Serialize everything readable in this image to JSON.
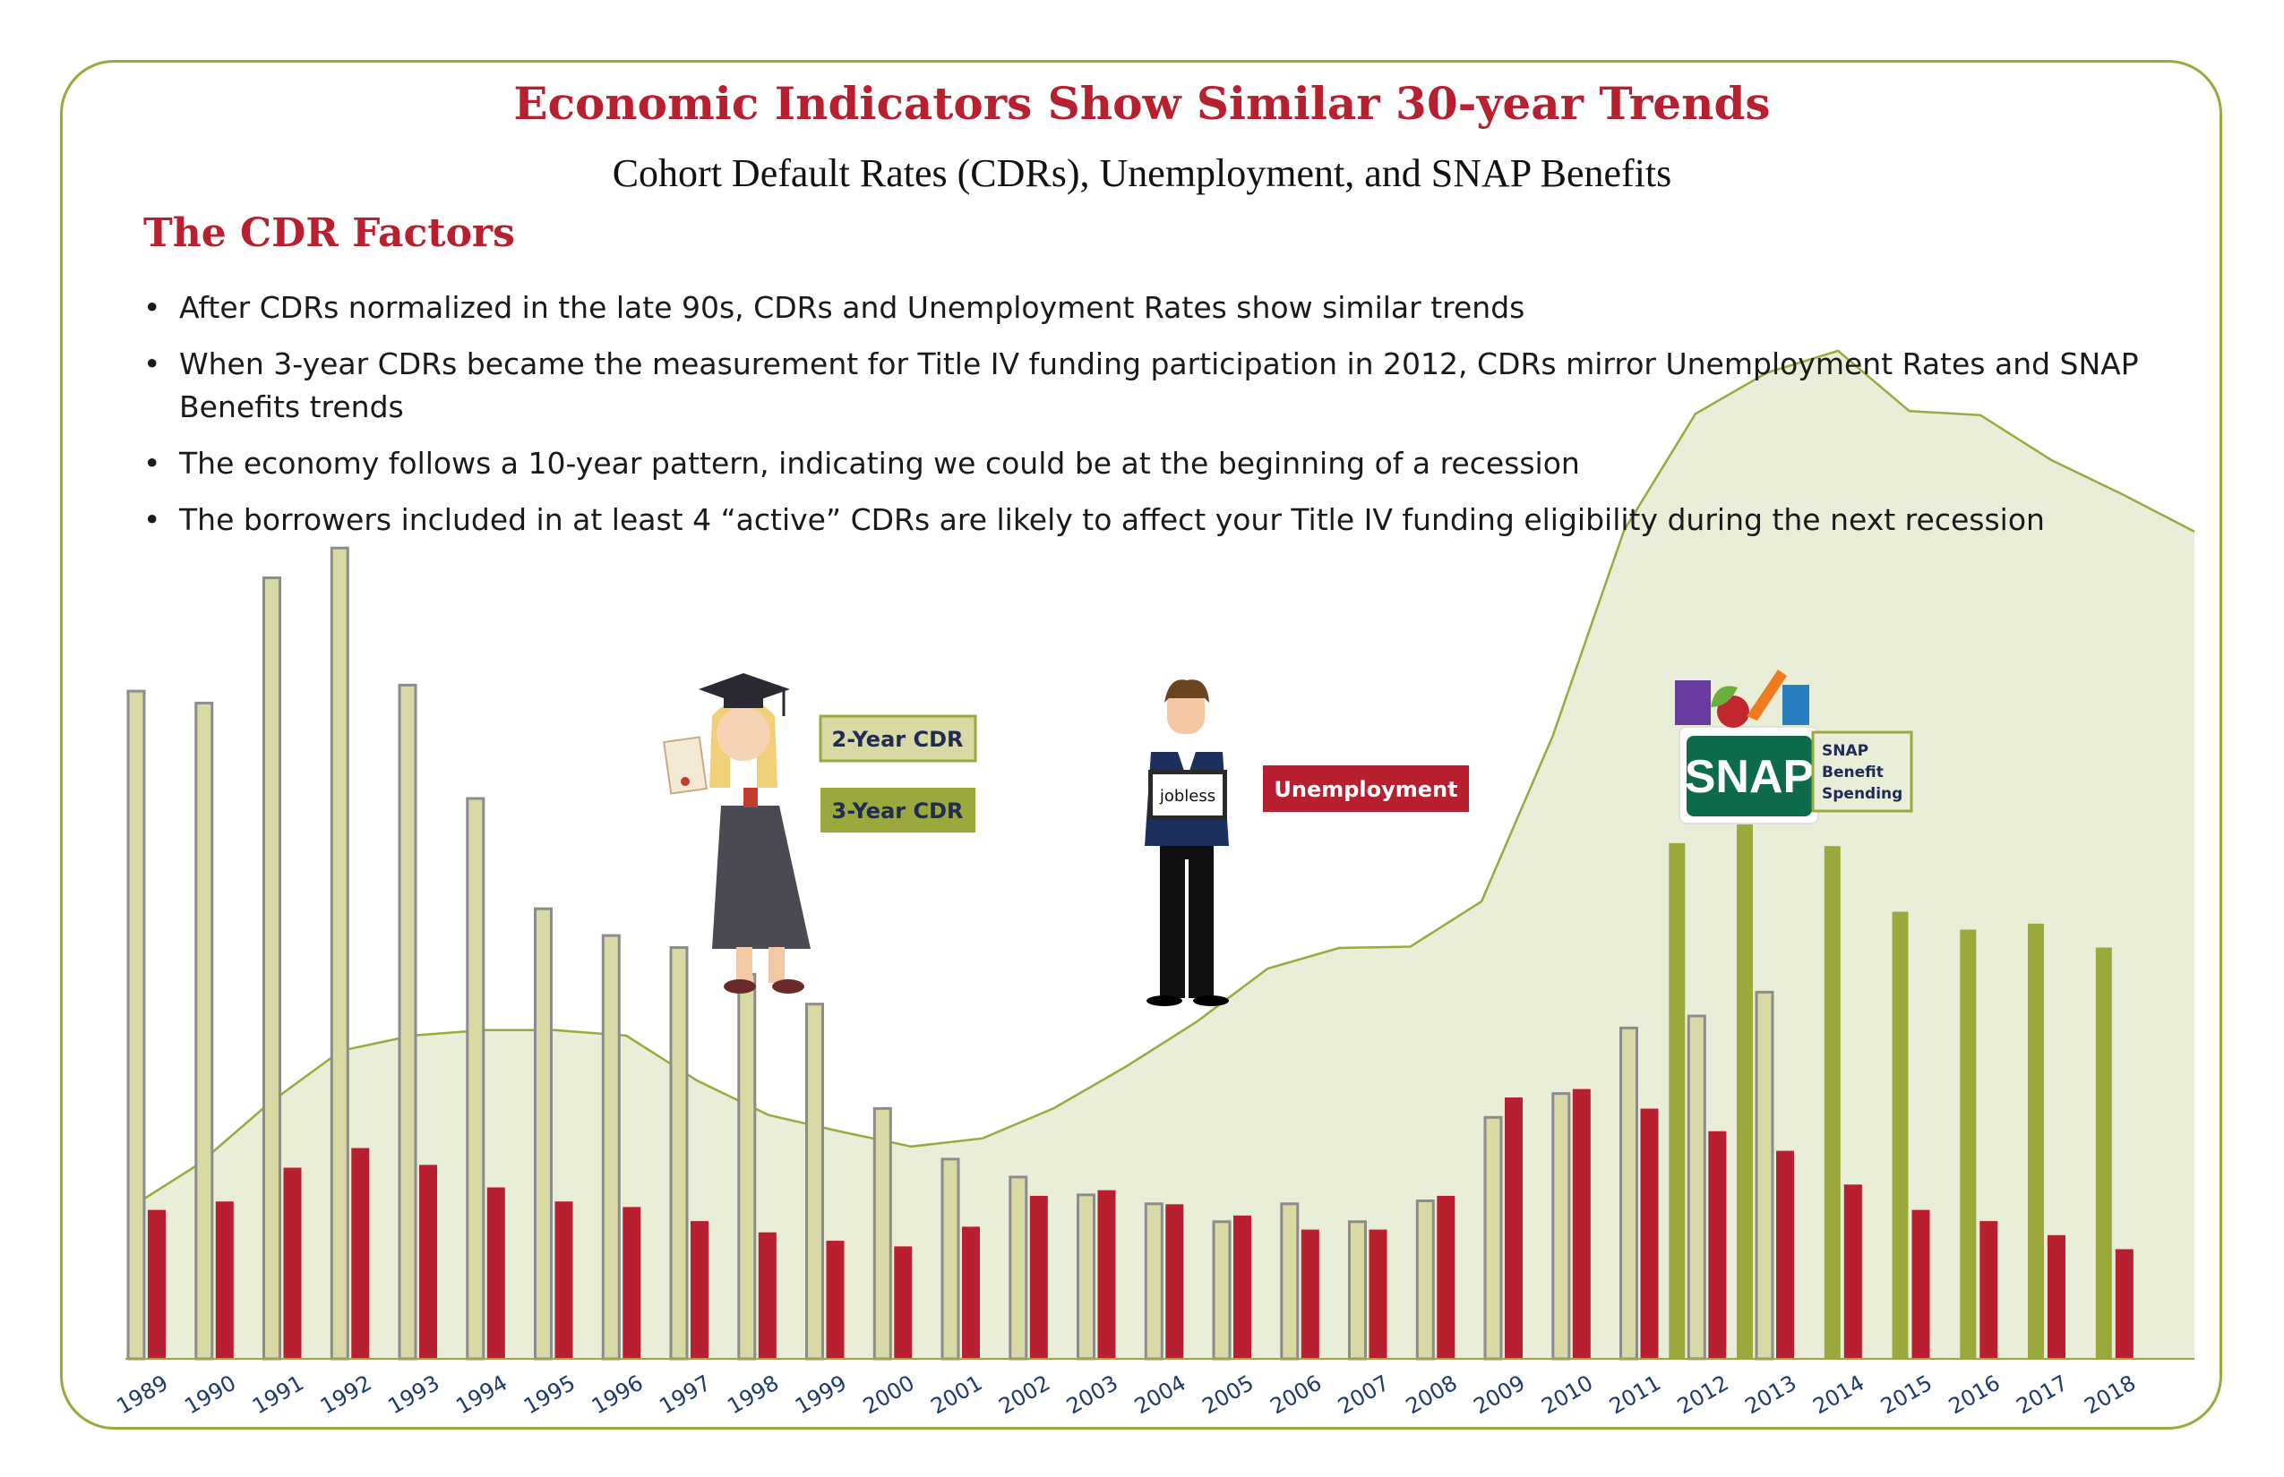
{
  "header": {
    "title": "Economic Indicators Show Similar 30-year Trends",
    "subtitle": "Cohort Default Rates (CDRs), Unemployment, and SNAP Benefits"
  },
  "factors": {
    "heading": "The CDR Factors",
    "bullets": [
      "After CDRs normalized in the late 90s, CDRs and Unemployment Rates show similar trends",
      "When 3-year CDRs became the measurement for Title IV funding participation in 2012, CDRs mirror Unemployment Rates and SNAP Benefits trends",
      "The economy follows a 10-year pattern, indicating we could be at the beginning of a recession",
      "The borrowers included in at least 4 “active” CDRs are likely to affect your Title IV funding eligibility during the next recession"
    ]
  },
  "legend": {
    "cdr2": "2-Year CDR",
    "cdr3": "3-Year CDR",
    "unemployment": "Unemployment",
    "snap": "SNAP Benefit Spending",
    "snap_logo": "SNAP",
    "jobless_sign": "jobless"
  },
  "colors": {
    "cdr2": "#d9d9a6",
    "cdr2_border": "#8c8c8c",
    "cdr3": "#9aa83c",
    "unemployment": "#b8202f",
    "snap_area": "#e9eed9",
    "snap_line": "#9aa83c",
    "frame": "#9aa83c",
    "title": "#b8202f",
    "year_labels": "#1f3a6e"
  },
  "chart_data": {
    "type": "bar",
    "categories": [
      "1989",
      "1990",
      "1991",
      "1992",
      "1993",
      "1994",
      "1995",
      "1996",
      "1997",
      "1998",
      "1999",
      "2000",
      "2001",
      "2002",
      "2003",
      "2004",
      "2005",
      "2006",
      "2007",
      "2008",
      "2009",
      "2010",
      "2011",
      "2012",
      "2013",
      "2014",
      "2015",
      "2016",
      "2017",
      "2018"
    ],
    "series": [
      {
        "name": "2-Year CDR",
        "values": [
          22.4,
          22.0,
          26.2,
          27.2,
          22.6,
          18.8,
          15.1,
          14.2,
          13.8,
          12.9,
          11.9,
          8.4,
          6.7,
          6.1,
          5.5,
          5.2,
          4.6,
          5.2,
          4.6,
          5.3,
          8.1,
          8.9,
          11.1,
          11.5,
          12.3,
          null,
          null,
          null,
          null,
          null
        ]
      },
      {
        "name": "3-Year CDR",
        "values": [
          null,
          null,
          null,
          null,
          null,
          null,
          null,
          null,
          null,
          null,
          null,
          null,
          null,
          null,
          null,
          null,
          null,
          null,
          null,
          null,
          null,
          null,
          null,
          17.3,
          18.8,
          17.2,
          15.0,
          14.4,
          14.6,
          13.8
        ]
      },
      {
        "name": "Unemployment",
        "values": [
          5.3,
          5.6,
          6.8,
          7.5,
          6.9,
          6.1,
          5.6,
          5.4,
          4.9,
          4.5,
          4.2,
          4.0,
          4.7,
          5.8,
          6.0,
          5.5,
          5.1,
          4.6,
          4.6,
          5.8,
          9.3,
          9.6,
          8.9,
          8.1,
          7.4,
          6.2,
          5.3,
          4.9,
          4.4,
          3.9
        ]
      },
      {
        "name": "SNAP Benefit Spending",
        "values": [
          10.9,
          14.2,
          18.7,
          22.5,
          23.6,
          24.0,
          24.0,
          23.6,
          20.3,
          17.8,
          16.6,
          15.5,
          16.1,
          18.3,
          21.3,
          24.6,
          28.5,
          30.0,
          30.1,
          33.4,
          45.5,
          60.5,
          69.0,
          72.0,
          73.6,
          69.2,
          68.9,
          65.6,
          63.1,
          60.4
        ]
      }
    ],
    "xlabel": "",
    "ylabel": "",
    "grid": false,
    "legend": "inline"
  }
}
